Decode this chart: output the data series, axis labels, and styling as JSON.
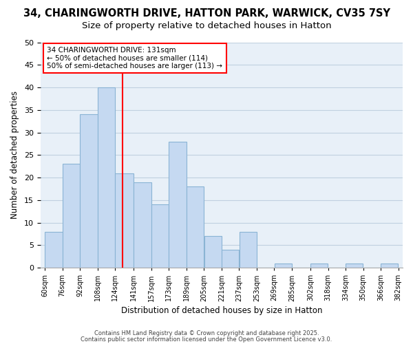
{
  "title1": "34, CHARINGWORTH DRIVE, HATTON PARK, WARWICK, CV35 7SY",
  "title2": "Size of property relative to detached houses in Hatton",
  "xlabel": "Distribution of detached houses by size in Hatton",
  "ylabel": "Number of detached properties",
  "bar_color": "#c5d9f1",
  "bar_edge_color": "#8ab4d4",
  "grid_color": "#c0d0e0",
  "background_color": "#e8f0f8",
  "bins": [
    60,
    76,
    92,
    108,
    124,
    141,
    157,
    173,
    189,
    205,
    221,
    237,
    253,
    269,
    285,
    302,
    318,
    334,
    350,
    366,
    382
  ],
  "counts": [
    8,
    23,
    34,
    40,
    21,
    19,
    14,
    28,
    18,
    7,
    4,
    8,
    0,
    1,
    0,
    1,
    0,
    1,
    0,
    1
  ],
  "red_line_x": 131,
  "annotation_line1": "34 CHARINGWORTH DRIVE: 131sqm",
  "annotation_line2": "← 50% of detached houses are smaller (114)",
  "annotation_line3": "50% of semi-detached houses are larger (113) →",
  "ylim": [
    0,
    50
  ],
  "yticks": [
    0,
    5,
    10,
    15,
    20,
    25,
    30,
    35,
    40,
    45,
    50
  ],
  "footer1": "Contains HM Land Registry data © Crown copyright and database right 2025.",
  "footer2": "Contains public sector information licensed under the Open Government Licence v3.0.",
  "title1_fontsize": 10.5,
  "title2_fontsize": 9.5
}
